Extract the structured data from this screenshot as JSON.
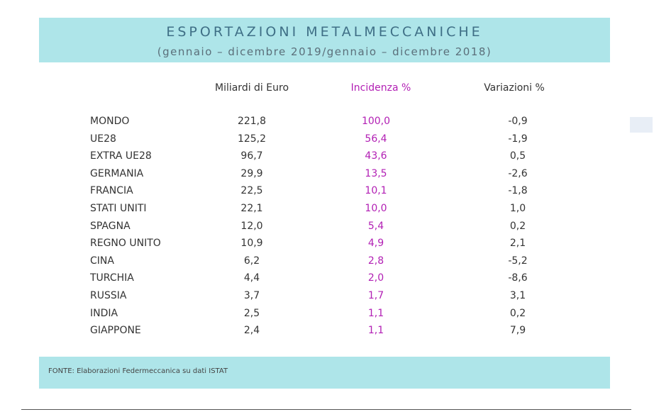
{
  "header": {
    "title": "ESPORTAZIONI METALMECCANICHE",
    "subtitle": "(gennaio – dicembre 2019/gennaio – dicembre 2018)"
  },
  "table": {
    "columns": [
      "Miliardi di Euro",
      "Incidenza %",
      "Variazioni %"
    ],
    "rows": [
      [
        "MONDO",
        "221,8",
        "100,0",
        "-0,9"
      ],
      [
        "UE28",
        "125,2",
        "56,4",
        "-1,9"
      ],
      [
        "EXTRA UE28",
        "96,7",
        "43,6",
        "0,5"
      ],
      [
        "GERMANIA",
        "29,9",
        "13,5",
        "-2,6"
      ],
      [
        "FRANCIA",
        "22,5",
        "10,1",
        "-1,8"
      ],
      [
        "STATI UNITI",
        "22,1",
        "10,0",
        "1,0"
      ],
      [
        "SPAGNA",
        "12,0",
        "5,4",
        "0,2"
      ],
      [
        "REGNO UNITO",
        "10,9",
        "4,9",
        "2,1"
      ],
      [
        "CINA",
        "6,2",
        "2,8",
        "-5,2"
      ],
      [
        "TURCHIA",
        "4,4",
        "2,0",
        "-8,6"
      ],
      [
        "RUSSIA",
        "3,7",
        "1,7",
        "3,1"
      ],
      [
        "INDIA",
        "2,5",
        "1,1",
        "0,2"
      ],
      [
        "GIAPPONE",
        "2,4",
        "1,1",
        "7,9"
      ]
    ]
  },
  "footer": {
    "source": "FONTE: Elaborazioni Federmeccanica su dati ISTAT"
  }
}
